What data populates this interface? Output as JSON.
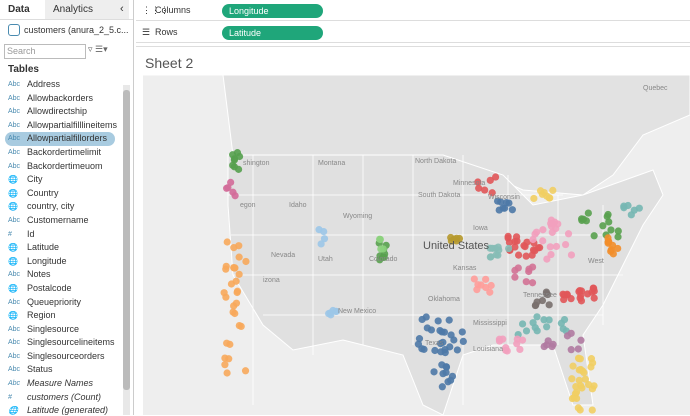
{
  "sidebar": {
    "tabs": [
      "Data",
      "Analytics"
    ],
    "datasource": "customers (anura_2_5.c...",
    "search_placeholder": "Search",
    "section": "Tables",
    "fields": [
      {
        "icon": "Abc",
        "name": "Address"
      },
      {
        "icon": "Abc",
        "name": "Allowbackorders"
      },
      {
        "icon": "Abc",
        "name": "Allowdirectship"
      },
      {
        "icon": "Abc",
        "name": "Allowpartialfilllineitems"
      },
      {
        "icon": "Abc",
        "name": "Allowpartialfillorders",
        "selected": true
      },
      {
        "icon": "Abc",
        "name": "Backordertimelimit"
      },
      {
        "icon": "Abc",
        "name": "Backordertimeuom"
      },
      {
        "name": "City"
      },
      {
        "name": "Country"
      },
      {
        "name": "country, city"
      },
      {
        "icon": "Abc",
        "name": "Customername"
      },
      {
        "icon": "#",
        "name": "Id"
      },
      {
        "name": "Latitude"
      },
      {
        "name": "Longitude"
      },
      {
        "icon": "Abc",
        "name": "Notes"
      },
      {
        "name": "Postalcode"
      },
      {
        "icon": "Abc",
        "name": "Queuepriority"
      },
      {
        "name": "Region"
      },
      {
        "icon": "Abc",
        "name": "Singlesource"
      },
      {
        "icon": "Abc",
        "name": "Singlesourcelineitems"
      },
      {
        "icon": "Abc",
        "name": "Singlesourceorders"
      },
      {
        "icon": "Abc",
        "name": "Status"
      },
      {
        "icon": "Abc",
        "name": "Measure Names",
        "italic": true
      },
      {
        "icon": "#",
        "name": "customers (Count)",
        "italic": true
      },
      {
        "name": "Latitude (generated)",
        "italic": true
      }
    ]
  },
  "shelves": [
    {
      "label": "Columns",
      "pill": "Longitude"
    },
    {
      "label": "Rows",
      "pill": "Latitude"
    }
  ],
  "sheet": {
    "title": "Sheet 2",
    "map_labels": [
      "Quebec",
      "shington",
      "egon",
      "Montana",
      "North Dakota",
      "South Dakota",
      "Minnesota",
      "Wyoming",
      "Idaho",
      "Nevada",
      "Utah",
      "Colorado",
      "United States",
      "Iowa",
      "Kansas",
      "Oklahoma",
      "Texas",
      "New Mexico",
      "izona",
      "Mississippi",
      "Louisiana",
      "Tennessee",
      "West",
      "Wisconsin"
    ]
  }
}
